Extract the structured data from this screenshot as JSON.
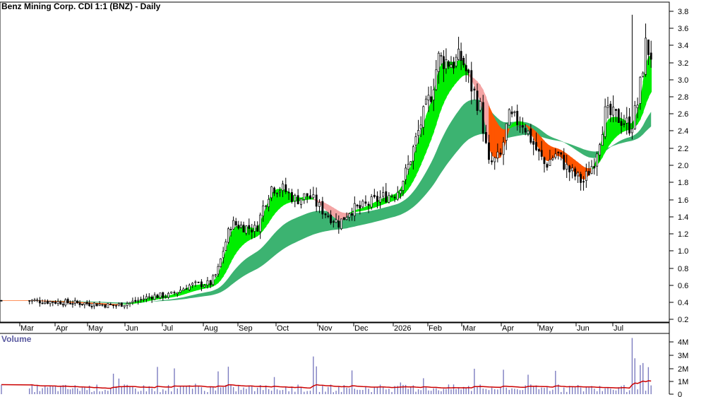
{
  "chart_data": {
    "type": "candlestick",
    "title": "Benz Mining Corp. CDI 1:1 (BNZ) - Daily",
    "price_axis": {
      "ticks": [
        "0.2",
        "0.4",
        "0.6",
        "0.8",
        "1.0",
        "1.2",
        "1.4",
        "1.6",
        "1.8",
        "2.0",
        "2.2",
        "2.4",
        "2.6",
        "2.8",
        "3.0",
        "3.2",
        "3.4",
        "3.6",
        "3.8"
      ],
      "range": [
        0.1,
        3.9
      ]
    },
    "x_axis": {
      "labels": [
        "Mar",
        "Apr",
        "May",
        "Jun",
        "Jul",
        "Aug",
        "Sep",
        "Oct",
        "Nov",
        "Dec",
        "2026",
        "Feb",
        "Mar",
        "Apr",
        "May",
        "Jun",
        "Jul"
      ]
    },
    "price_points": [
      {
        "m": 0.0,
        "p": 0.42
      },
      {
        "m": 1.0,
        "p": 0.4
      },
      {
        "m": 2.0,
        "p": 0.38
      },
      {
        "m": 2.5,
        "p": 0.36
      },
      {
        "m": 3.0,
        "p": 0.4
      },
      {
        "m": 3.5,
        "p": 0.47
      },
      {
        "m": 4.0,
        "p": 0.48
      },
      {
        "m": 4.5,
        "p": 0.6
      },
      {
        "m": 5.0,
        "p": 0.62
      },
      {
        "m": 5.2,
        "p": 0.75
      },
      {
        "m": 5.4,
        "p": 1.05
      },
      {
        "m": 5.6,
        "p": 1.32
      },
      {
        "m": 6.0,
        "p": 1.28
      },
      {
        "m": 6.3,
        "p": 1.25
      },
      {
        "m": 6.5,
        "p": 1.55
      },
      {
        "m": 6.7,
        "p": 1.75
      },
      {
        "m": 7.0,
        "p": 1.72
      },
      {
        "m": 7.3,
        "p": 1.6
      },
      {
        "m": 7.6,
        "p": 1.65
      },
      {
        "m": 8.0,
        "p": 1.45
      },
      {
        "m": 8.4,
        "p": 1.32
      },
      {
        "m": 8.7,
        "p": 1.48
      },
      {
        "m": 9.0,
        "p": 1.5
      },
      {
        "m": 9.5,
        "p": 1.62
      },
      {
        "m": 9.9,
        "p": 1.68
      },
      {
        "m": 10.2,
        "p": 1.95
      },
      {
        "m": 10.6,
        "p": 2.5
      },
      {
        "m": 10.9,
        "p": 2.85
      },
      {
        "m": 11.1,
        "p": 3.25
      },
      {
        "m": 11.5,
        "p": 3.2
      },
      {
        "m": 11.8,
        "p": 3.25
      },
      {
        "m": 12.0,
        "p": 3.0
      },
      {
        "m": 12.3,
        "p": 2.65
      },
      {
        "m": 12.5,
        "p": 2.0
      },
      {
        "m": 12.8,
        "p": 2.1
      },
      {
        "m": 13.0,
        "p": 2.55
      },
      {
        "m": 13.4,
        "p": 2.5
      },
      {
        "m": 13.8,
        "p": 2.15
      },
      {
        "m": 14.0,
        "p": 2.0
      },
      {
        "m": 14.3,
        "p": 2.15
      },
      {
        "m": 14.6,
        "p": 1.95
      },
      {
        "m": 15.0,
        "p": 1.8
      },
      {
        "m": 15.3,
        "p": 2.05
      },
      {
        "m": 15.6,
        "p": 2.6
      },
      {
        "m": 16.0,
        "p": 2.55
      },
      {
        "m": 16.3,
        "p": 2.45
      },
      {
        "m": 16.5,
        "p": 2.75
      },
      {
        "m": 16.7,
        "p": 3.4
      },
      {
        "m": 16.85,
        "p": 3.3
      }
    ],
    "series": [
      {
        "name": "short-term-ma-ribbon",
        "bull_color": "#00ee00",
        "bear_color": "#ff5500",
        "warn_color": "#f4a4a4"
      },
      {
        "name": "long-term-ma-ribbon",
        "color": "#3cb371"
      }
    ],
    "volume": {
      "title": "Volume",
      "ticks": [
        "0",
        "1M",
        "2M",
        "3M",
        "4M"
      ],
      "range": [
        0,
        4500000
      ],
      "bar_color": "#7c7cc0",
      "ma_color": "#cc0000"
    },
    "colors": {
      "grid": "#e0e0e0",
      "candle_up": "#000000",
      "candle_down": "#000000"
    }
  }
}
